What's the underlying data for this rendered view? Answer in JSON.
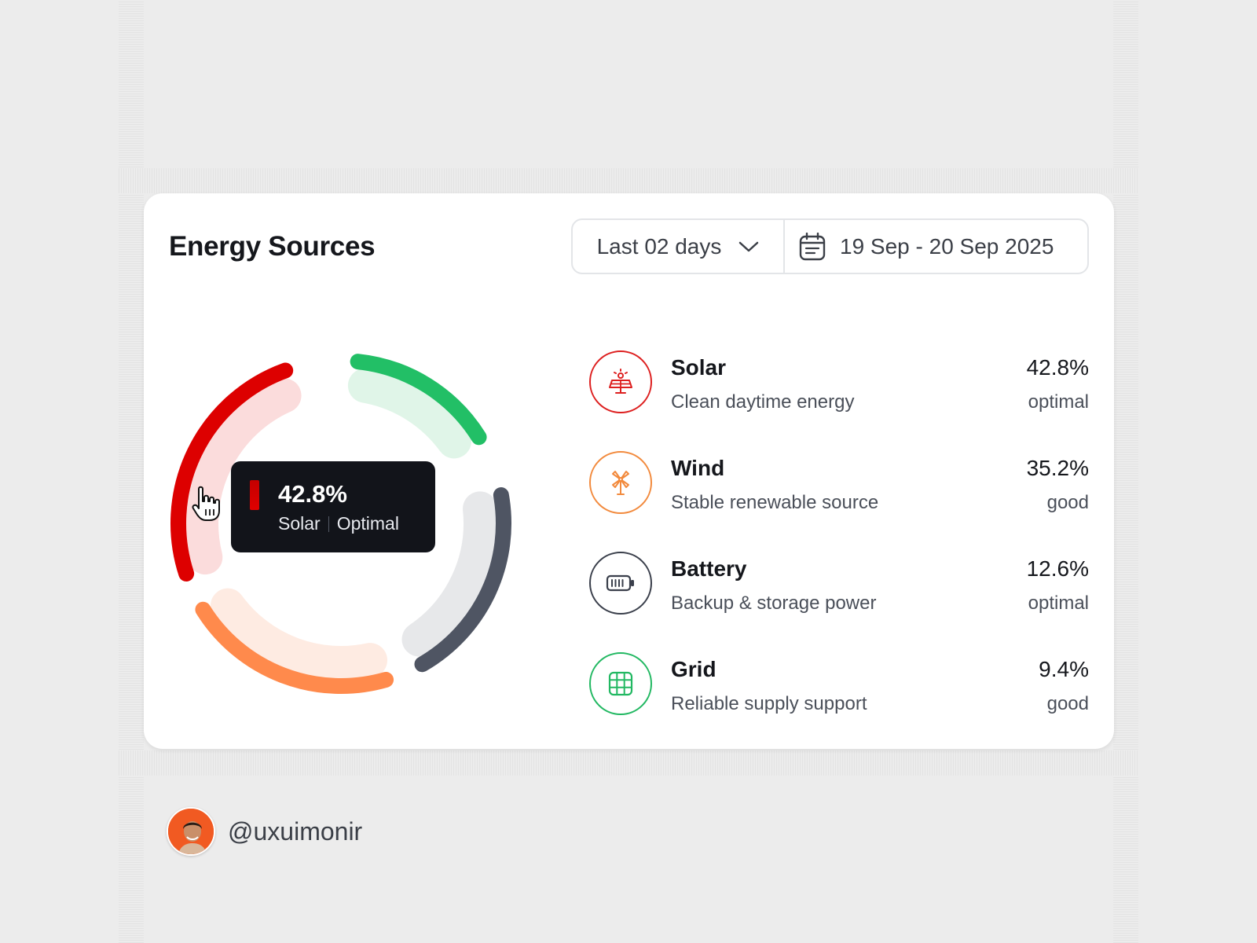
{
  "card": {
    "title": "Energy Sources",
    "range_select": {
      "value": "Last 02 days",
      "icon": "chevron-down-icon"
    },
    "date_range": {
      "value": "19 Sep - 20 Sep 2025",
      "icon": "calendar-icon"
    }
  },
  "tooltip": {
    "value": "42.8%",
    "label": "Solar",
    "status": "Optimal",
    "color": "#dd0000"
  },
  "chart_data": {
    "type": "pie",
    "categories": [
      "Solar",
      "Wind",
      "Battery",
      "Grid"
    ],
    "values": [
      42.8,
      35.2,
      12.6,
      9.4
    ],
    "colors": {
      "Solar": "#dd0000",
      "Wind": "#ff8a4c",
      "Battery": "#4f5563",
      "Grid": "#22bf66"
    }
  },
  "sources": [
    {
      "name": "Solar",
      "desc": "Clean daytime energy",
      "pct": "42.8%",
      "status": "optimal",
      "color": "#dd1f1f",
      "icon": "solar-panel-icon"
    },
    {
      "name": "Wind",
      "desc": "Stable renewable source",
      "pct": "35.2%",
      "status": "good",
      "color": "#f28a3d",
      "icon": "wind-turbine-icon"
    },
    {
      "name": "Battery",
      "desc": "Backup & storage power",
      "pct": "12.6%",
      "status": "optimal",
      "color": "#3a3f4b",
      "icon": "battery-icon"
    },
    {
      "name": "Grid",
      "desc": "Reliable supply support",
      "pct": "9.4%",
      "status": "good",
      "color": "#22b862",
      "icon": "grid-icon"
    }
  ],
  "author": {
    "handle": "@uxuimonir"
  }
}
